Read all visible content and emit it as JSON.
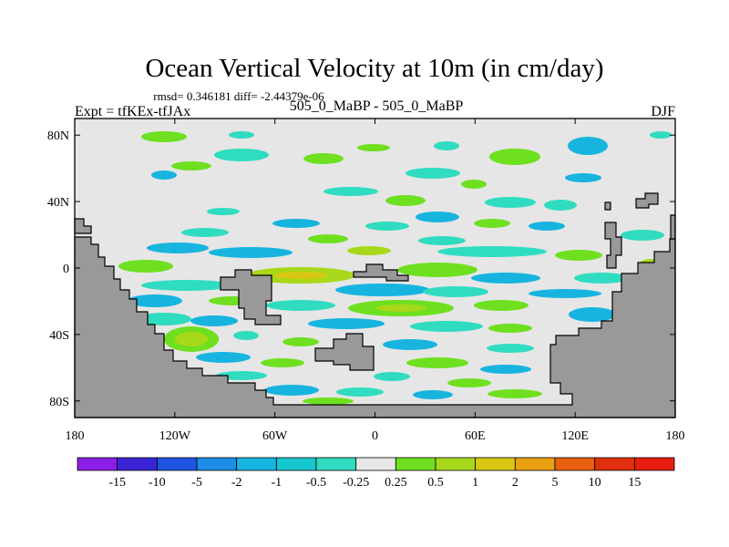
{
  "chart_data": {
    "type": "heatmap",
    "title": "Ocean Vertical Velocity at 10m (in cm/day)",
    "stats_line": "rmsd= 0.346181 diff= -2.44379e-06",
    "left_label": "Expt = tfKEx-tfJAx",
    "center_label": "505_0_MaBP - 505_0_MaBP",
    "right_label": "DJF",
    "xlim": [
      -180,
      180
    ],
    "ylim": [
      -90,
      90
    ],
    "x_ticks": [
      {
        "value": -180,
        "label": "180"
      },
      {
        "value": -120,
        "label": "120W"
      },
      {
        "value": -60,
        "label": "60W"
      },
      {
        "value": 0,
        "label": "0"
      },
      {
        "value": 60,
        "label": "60E"
      },
      {
        "value": 120,
        "label": "120E"
      },
      {
        "value": 180,
        "label": "180"
      }
    ],
    "y_ticks": [
      {
        "value": 80,
        "label": "80N"
      },
      {
        "value": 40,
        "label": "40N"
      },
      {
        "value": 0,
        "label": "0"
      },
      {
        "value": -40,
        "label": "40S"
      },
      {
        "value": -80,
        "label": "80S"
      }
    ],
    "colorbar": {
      "levels": [
        "-15",
        "-10",
        "-5",
        "-2",
        "-1",
        "-0.5",
        "-0.25",
        "0.25",
        "0.5",
        "1",
        "2",
        "5",
        "10",
        "15"
      ],
      "colors": [
        "#8c1fe6",
        "#3a25d6",
        "#1f55e0",
        "#1c8ee8",
        "#18b4e0",
        "#17c6cf",
        "#30dcc0",
        "#e6e6e6",
        "#6ee020",
        "#a8d81a",
        "#d8c814",
        "#e8a010",
        "#e86010",
        "#e03010",
        "#e81c10"
      ]
    },
    "land_color": "#999999",
    "ocean_background": "#e6e6e6"
  }
}
